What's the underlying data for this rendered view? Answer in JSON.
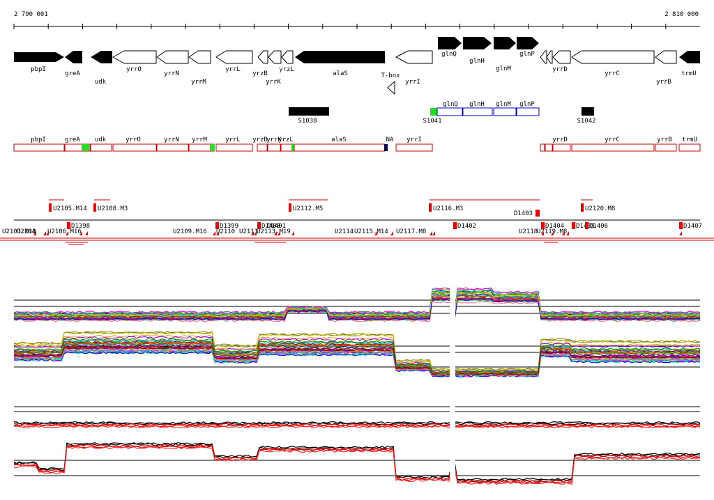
{
  "coords": {
    "start": "2 790 001",
    "end": "2 810 000"
  },
  "colors": {
    "gene_black": "#000000",
    "segment_blue": "#0000cc",
    "transcript_red": "#cc0000",
    "highlight_green": "#22dd22",
    "marker_red": "#ee0000",
    "dark_navy": "#000066"
  },
  "genes": [
    {
      "name": "pbpI",
      "dir": "+",
      "fill": "black",
      "label_row": 1
    },
    {
      "name": "greA",
      "dir": "-",
      "fill": "black",
      "label_row": 1
    },
    {
      "name": "udk",
      "dir": "-",
      "fill": "black",
      "label_row": 2
    },
    {
      "name": "yrrO",
      "dir": "-",
      "fill": "white",
      "label_row": 1
    },
    {
      "name": "yrrN",
      "dir": "-",
      "fill": "white",
      "label_row": 1
    },
    {
      "name": "yrrM",
      "dir": "-",
      "fill": "white",
      "label_row": 2
    },
    {
      "name": "yrrL",
      "dir": "-",
      "fill": "white",
      "label_row": 1
    },
    {
      "name": "yrzB",
      "dir": "-",
      "fill": "white",
      "label_row": 1
    },
    {
      "name": "yrrK",
      "dir": "-",
      "fill": "white",
      "label_row": 2
    },
    {
      "name": "yrzL",
      "dir": "-",
      "fill": "white",
      "label_row": 1
    },
    {
      "name": "alaS",
      "dir": "-",
      "fill": "black",
      "label_row": 1
    },
    {
      "name": "T-box",
      "dir": "-",
      "fill": "none",
      "label_row": 1
    },
    {
      "name": "yrrI",
      "dir": "-",
      "fill": "white",
      "label_row": 2
    },
    {
      "name": "glnQ",
      "dir": "+",
      "fill": "black",
      "label_row": 0
    },
    {
      "name": "glnH",
      "dir": "+",
      "fill": "black",
      "label_row": 1
    },
    {
      "name": "glnM",
      "dir": "+",
      "fill": "black",
      "label_row": 1
    },
    {
      "name": "glnP",
      "dir": "+",
      "fill": "black",
      "label_row": 0
    },
    {
      "name": "yrrD",
      "dir": "-",
      "fill": "white",
      "label_row": 1
    },
    {
      "name": "yrrC",
      "dir": "-",
      "fill": "white",
      "label_row": 1
    },
    {
      "name": "yrrB",
      "dir": "-",
      "fill": "white",
      "label_row": 2
    },
    {
      "name": "trmU",
      "dir": "-",
      "fill": "black",
      "label_row": 1
    }
  ],
  "s_features": [
    {
      "name": "S1038"
    },
    {
      "name": "S1041"
    },
    {
      "name": "S1042"
    }
  ],
  "segments": [
    {
      "name": "glnQ"
    },
    {
      "name": "glnH"
    },
    {
      "name": "glnM"
    },
    {
      "name": "glnP"
    }
  ],
  "transcripts": [
    {
      "name": "pbpI"
    },
    {
      "name": "greA"
    },
    {
      "name": "udk"
    },
    {
      "name": "yrrO"
    },
    {
      "name": "yrrN"
    },
    {
      "name": "yrrM"
    },
    {
      "name": "yrrL"
    },
    {
      "name": "yrzB"
    },
    {
      "name": "yrrK"
    },
    {
      "name": "yrzL"
    },
    {
      "name": "alaS"
    },
    {
      "name": "NA"
    },
    {
      "name": "yrrI"
    },
    {
      "name": "yrrD"
    },
    {
      "name": "yrrC"
    },
    {
      "name": "yrrB"
    },
    {
      "name": "trmU"
    }
  ],
  "upshifts_top": [
    {
      "name": "U2105.M14"
    },
    {
      "name": "U2108.M3"
    },
    {
      "name": "U2112.M5"
    },
    {
      "name": "U2116.M3"
    },
    {
      "name": "U2120.M8"
    }
  ],
  "upshifts_bottom": [
    {
      "name": "U2103.M19"
    },
    {
      "name": "U2104"
    },
    {
      "name": "U2106.M16"
    },
    {
      "name": "U2109.M16"
    },
    {
      "name": "U2110"
    },
    {
      "name": "U2111"
    },
    {
      "name": "U2113.M19"
    },
    {
      "name": "U2114"
    },
    {
      "name": "U2115.M14"
    },
    {
      "name": "U2117.M8"
    },
    {
      "name": "U2118"
    },
    {
      "name": "U2119.M8"
    }
  ],
  "downshifts": [
    {
      "name": "D1398"
    },
    {
      "name": "D1399"
    },
    {
      "name": "D1400"
    },
    {
      "name": "D1401"
    },
    {
      "name": "D1402"
    },
    {
      "name": "D1403"
    },
    {
      "name": "D1404"
    },
    {
      "name": "D1405"
    },
    {
      "name": "D1406"
    },
    {
      "name": "D1407"
    }
  ]
}
